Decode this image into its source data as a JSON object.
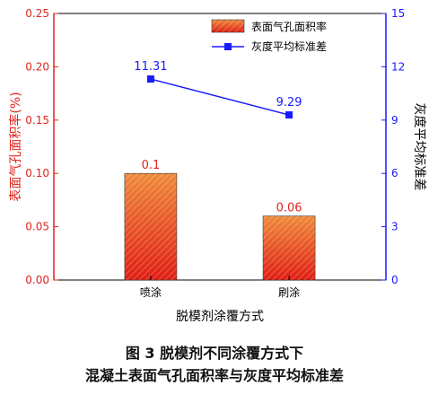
{
  "chart_data": {
    "type": "bar",
    "categories": [
      "喷涂",
      "刷涂"
    ],
    "xlabel": "脱模剂涂覆方式",
    "series": [
      {
        "name": "表面气孔面积率",
        "kind": "bar",
        "axis": "left",
        "values": [
          0.1,
          0.06
        ],
        "labels": [
          "0.1",
          "0.06"
        ],
        "color": "#d9321c",
        "gradient_top": "#ee8a3a",
        "gradient_bottom": "#e01e14"
      },
      {
        "name": "灰度平均标准差",
        "kind": "line",
        "axis": "right",
        "values": [
          11.31,
          9.29
        ],
        "labels": [
          "11.31",
          "9.29"
        ],
        "color": "#1a1aff",
        "marker": "square"
      }
    ],
    "y_left": {
      "label": "表面气孔面积率(%)",
      "lim": [
        0,
        0.25
      ],
      "ticks": [
        "0.00",
        "0.05",
        "0.10",
        "0.15",
        "0.20",
        "0.25"
      ],
      "color": "#e0241c"
    },
    "y_right": {
      "label": "灰度平均标准差",
      "lim": [
        0,
        15
      ],
      "ticks": [
        "0",
        "3",
        "6",
        "9",
        "12",
        "15"
      ],
      "color": "#1a1aff"
    },
    "legend_position": "top-right",
    "grid": false
  },
  "caption": {
    "line1": "图 3   脱模剂不同涂覆方式下",
    "line2": "混凝土表面气孔面积率与灰度平均标准差"
  }
}
